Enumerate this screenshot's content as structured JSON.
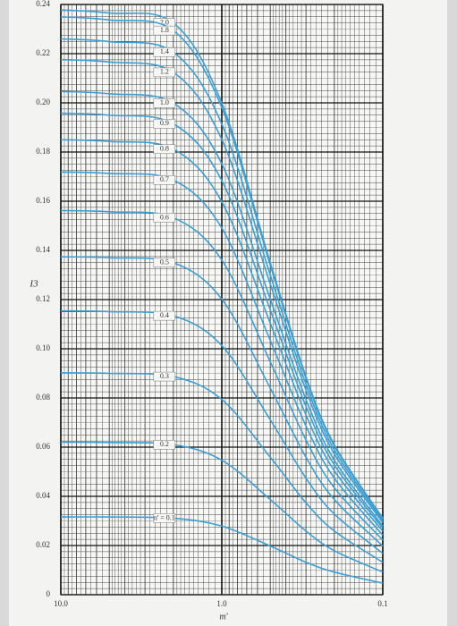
{
  "chart_data": {
    "type": "line",
    "x_label": "m'",
    "y_label": "I3",
    "log_x": true,
    "grid": true,
    "xlim": [
      10,
      0.1
    ],
    "xticks": [
      {
        "value": 10,
        "label": "10.0"
      },
      {
        "value": 1,
        "label": "1.0"
      },
      0.1
    ],
    "ylim": [
      0,
      0.24
    ],
    "yticks": [
      0,
      0.02,
      0.04,
      0.06,
      0.08,
      {
        "value": 0.1,
        "label": "0.10"
      },
      0.12,
      0.14,
      0.16,
      0.18,
      {
        "value": 0.2,
        "label": "0.20"
      },
      0.22,
      0.24
    ],
    "x": [
      10,
      5,
      2,
      1,
      0.5,
      0.3,
      0.2,
      0.1
    ],
    "series": [
      {
        "name": "2.0",
        "color": "#3a9fd6",
        "values": [
          0.2378,
          0.2365,
          0.2325,
          0.1999,
          0.135,
          0.0887,
          0.061,
          0.0311
        ]
      },
      {
        "name": "1.8",
        "color": "#3a9fd6",
        "values": [
          0.235,
          0.2337,
          0.2294,
          0.1981,
          0.134,
          0.088,
          0.0605,
          0.0309
        ]
      },
      {
        "name": "1.4",
        "color": "#3a9fd6",
        "values": [
          0.226,
          0.2249,
          0.2206,
          0.1914,
          0.13,
          0.0856,
          0.0589,
          0.0301
        ]
      },
      {
        "name": "1.2",
        "color": "#3a9fd6",
        "values": [
          0.2176,
          0.2166,
          0.2124,
          0.1851,
          0.1263,
          0.0832,
          0.0573,
          0.0293
        ]
      },
      {
        "name": "1.0",
        "color": "#3a9fd6",
        "values": [
          0.2046,
          0.2037,
          0.1999,
          0.1752,
          0.1202,
          0.0794,
          0.0547,
          0.0279
        ]
      },
      {
        "name": "0.9",
        "color": "#3a9fd6",
        "values": [
          0.1958,
          0.195,
          0.1915,
          0.1684,
          0.1158,
          0.0766,
          0.0528,
          0.027
        ]
      },
      {
        "name": "0.8",
        "color": "#3a9fd6",
        "values": [
          0.185,
          0.1843,
          0.1812,
          0.1598,
          0.1104,
          0.0731,
          0.0504,
          0.0258
        ]
      },
      {
        "name": "0.7",
        "color": "#3a9fd6",
        "values": [
          0.1719,
          0.1713,
          0.1686,
          0.1491,
          0.1034,
          0.0686,
          0.0474,
          0.0242
        ]
      },
      {
        "name": "0.6",
        "color": "#3a9fd6",
        "values": [
          0.1562,
          0.1557,
          0.1533,
          0.1361,
          0.0947,
          0.0629,
          0.0435,
          0.0222
        ]
      },
      {
        "name": "0.5",
        "color": "#3a9fd6",
        "values": [
          0.1374,
          0.137,
          0.135,
          0.1202,
          0.084,
          0.0559,
          0.0387,
          0.0198
        ]
      },
      {
        "name": "0.4",
        "color": "#3a9fd6",
        "values": [
          0.1154,
          0.1151,
          0.1134,
          0.1013,
          0.0711,
          0.0474,
          0.0328,
          0.0168
        ]
      },
      {
        "name": "0.3",
        "color": "#3a9fd6",
        "values": [
          0.0902,
          0.09,
          0.0887,
          0.0794,
          0.0559,
          0.0374,
          0.0259,
          0.0132
        ]
      },
      {
        "name": "0.2",
        "color": "#3a9fd6",
        "values": [
          0.062,
          0.0619,
          0.061,
          0.0547,
          0.0387,
          0.0259,
          0.0179,
          0.0092
        ]
      },
      {
        "name": "n' = 0.1",
        "color": "#3a9fd6",
        "values": [
          0.0316,
          0.0316,
          0.0311,
          0.0279,
          0.0198,
          0.0132,
          0.0092,
          0.0047
        ]
      }
    ]
  }
}
